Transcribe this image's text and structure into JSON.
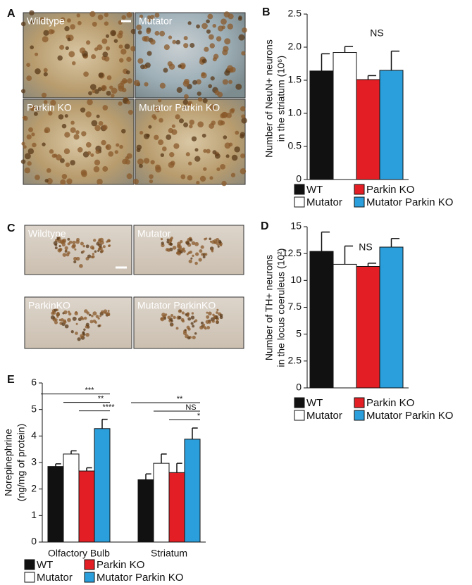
{
  "panel_letters": [
    "A",
    "B",
    "C",
    "D",
    "E"
  ],
  "images": {
    "A": [
      "Wildtype",
      "Mutator",
      "Parkin KO",
      "Mutator Parkin KO"
    ],
    "C": [
      "Wildtype",
      "Mutator",
      "ParkinKO",
      "Mutator ParkinKO"
    ]
  },
  "chart_data": [
    {
      "type": "bar",
      "ylabel": [
        "Number of NeuN+ neurons",
        "in the striatum (10⁶)"
      ],
      "annotation": "NS",
      "categories": [
        null
      ],
      "ylim": [
        0,
        2.5
      ],
      "yticks": [
        0,
        0.5,
        {
          "value": 1,
          "label": "1.0"
        },
        1.5,
        {
          "value": 2,
          "label": "2.0"
        },
        2.5
      ],
      "series": [
        {
          "name": "WT",
          "color": "#111111",
          "values": [
            1.64
          ],
          "errors": [
            0.26
          ]
        },
        {
          "name": "Mutator",
          "color": "#ffffff",
          "values": [
            1.92
          ],
          "errors": [
            0.09
          ]
        },
        {
          "name": "Parkin KO",
          "color": "#e31e24",
          "values": [
            1.51
          ],
          "errors": [
            0.06
          ]
        },
        {
          "name": "Mutator Parkin KO",
          "color": "#2b9fdc",
          "values": [
            1.65
          ],
          "errors": [
            0.29
          ]
        }
      ]
    },
    {
      "type": "bar",
      "ylabel": [
        "Number of TH+ neurons",
        "in the locus coeruleus (10²)"
      ],
      "annotation": "NS",
      "categories": [
        null
      ],
      "ylim": [
        0,
        15
      ],
      "yticks": [
        0,
        2.5,
        5,
        7.5,
        10,
        12.5,
        15
      ],
      "series": [
        {
          "name": "WT",
          "color": "#111111",
          "values": [
            12.7
          ],
          "errors": [
            1.8
          ]
        },
        {
          "name": "Mutator",
          "color": "#ffffff",
          "values": [
            11.5
          ],
          "errors": [
            1.7
          ]
        },
        {
          "name": "Parkin KO",
          "color": "#e31e24",
          "values": [
            11.3
          ],
          "errors": [
            0.3
          ]
        },
        {
          "name": "Mutator Parkin KO",
          "color": "#2b9fdc",
          "values": [
            13.1
          ],
          "errors": [
            0.8
          ]
        }
      ]
    },
    {
      "type": "bar",
      "ylabel": [
        "Norepinephrine",
        "(ng/mg of protein)"
      ],
      "categories": [
        "Olfactory Bulb",
        "Striatum"
      ],
      "significance": [
        [
          "***",
          "**",
          "****"
        ],
        [
          "**",
          "NS",
          "*"
        ]
      ],
      "ylim": [
        0,
        6
      ],
      "yticks": [
        0,
        1,
        2,
        3,
        4,
        5,
        6
      ],
      "series": [
        {
          "name": "WT",
          "color": "#111111",
          "values": [
            2.85,
            2.35
          ],
          "errors": [
            0.1,
            0.22
          ]
        },
        {
          "name": "Mutator",
          "color": "#ffffff",
          "values": [
            3.32,
            2.97
          ],
          "errors": [
            0.12,
            0.35
          ]
        },
        {
          "name": "Parkin KO",
          "color": "#e31e24",
          "values": [
            2.68,
            2.62
          ],
          "errors": [
            0.12,
            0.35
          ]
        },
        {
          "name": "Mutator Parkin KO",
          "color": "#2b9fdc",
          "values": [
            4.28,
            3.88
          ],
          "errors": [
            0.35,
            0.42
          ]
        }
      ]
    }
  ]
}
